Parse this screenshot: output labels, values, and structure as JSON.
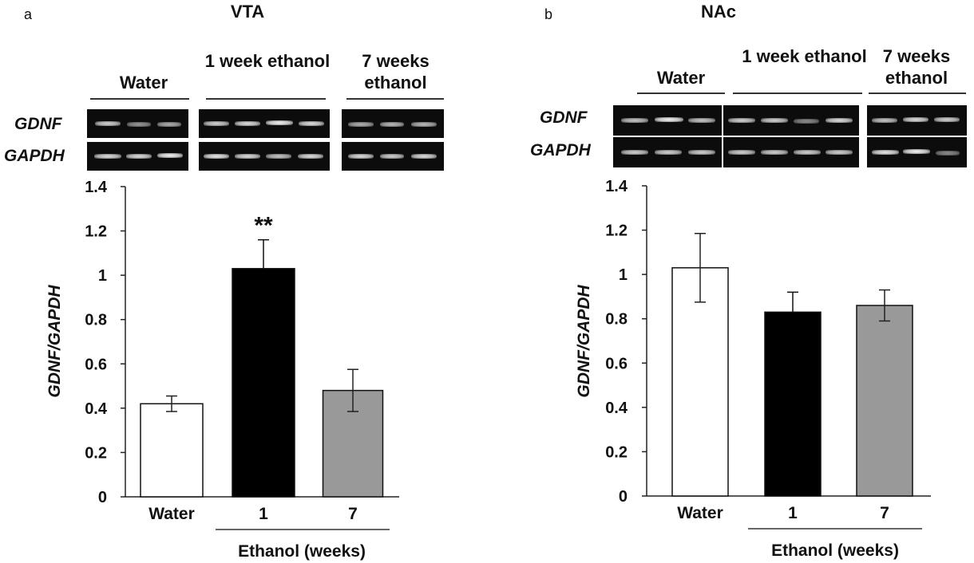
{
  "chart_data": [
    {
      "type": "bar",
      "panel_letter": "a",
      "title": "VTA",
      "categories": [
        "Water",
        "1",
        "7"
      ],
      "values": [
        0.42,
        1.03,
        0.48
      ],
      "errors": [
        0.035,
        0.13,
        0.095
      ],
      "bar_colors": [
        "#ffffff",
        "#000000",
        "#999999"
      ],
      "ylabel": "GDNF/GAPDH",
      "xlabel": "Ethanol (weeks)",
      "ylim": [
        0,
        1.4
      ],
      "yticks": [
        "0",
        "0.2",
        "0.4",
        "0.6",
        "0.8",
        "1",
        "1.2",
        "1.4"
      ],
      "annotations": [
        {
          "category": "1",
          "text": "**"
        }
      ],
      "gel": {
        "row_labels": [
          "GDNF",
          "GAPDH"
        ],
        "groups": [
          "Water",
          "1 week ethanol",
          "7 weeks ethanol"
        ],
        "lanes": [
          3,
          4,
          3
        ]
      }
    },
    {
      "type": "bar",
      "panel_letter": "b",
      "title": "NAc",
      "categories": [
        "Water",
        "1",
        "7"
      ],
      "values": [
        1.03,
        0.83,
        0.86
      ],
      "errors": [
        0.155,
        0.09,
        0.07
      ],
      "bar_colors": [
        "#ffffff",
        "#000000",
        "#999999"
      ],
      "ylabel": "GDNF/GAPDH",
      "xlabel": "Ethanol (weeks)",
      "ylim": [
        0,
        1.4
      ],
      "yticks": [
        "0",
        "0.2",
        "0.4",
        "0.6",
        "0.8",
        "1",
        "1.2",
        "1.4"
      ],
      "annotations": [],
      "gel": {
        "row_labels": [
          "GDNF",
          "GAPDH"
        ],
        "groups": [
          "Water",
          "1 week ethanol",
          "7 weeks ethanol"
        ],
        "lanes": [
          3,
          4,
          3
        ]
      }
    }
  ]
}
